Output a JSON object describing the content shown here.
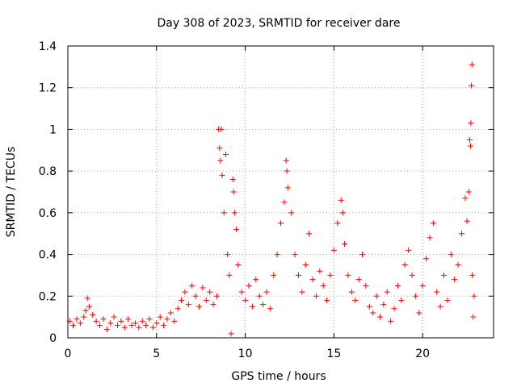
{
  "chart_data": {
    "type": "scatter",
    "title": "Day 308 of 2023, SRMTID for receiver dare",
    "xlabel": "GPS time / hours",
    "ylabel": "SRMTID / TECUs",
    "xlim": [
      0,
      24
    ],
    "ylim": [
      0,
      1.4
    ],
    "xticks": [
      0,
      5,
      10,
      15,
      20
    ],
    "xtick_labels": [
      "0",
      "5",
      "10",
      "15",
      "20"
    ],
    "yticks": [
      0,
      0.2,
      0.4,
      0.6,
      0.8,
      1.0,
      1.2,
      1.4
    ],
    "ytick_labels": [
      "0",
      "0.2",
      "0.4",
      "0.6",
      "0.8",
      "1",
      "1.2",
      "1.4"
    ],
    "grid": true,
    "marker": "+",
    "color": "#ff0000",
    "series": [
      {
        "name": "SRMTID",
        "points": [
          [
            0.1,
            0.08
          ],
          [
            0.3,
            0.06
          ],
          [
            0.5,
            0.09
          ],
          [
            0.7,
            0.07
          ],
          [
            0.9,
            0.1
          ],
          [
            1.0,
            0.13
          ],
          [
            1.1,
            0.19
          ],
          [
            1.2,
            0.15
          ],
          [
            1.4,
            0.11
          ],
          [
            1.6,
            0.08
          ],
          [
            1.8,
            0.06
          ],
          [
            2.0,
            0.09
          ],
          [
            2.2,
            0.04
          ],
          [
            2.4,
            0.07
          ],
          [
            2.6,
            0.1
          ],
          [
            2.8,
            0.06
          ],
          [
            3.0,
            0.08
          ],
          [
            3.2,
            0.05
          ],
          [
            3.4,
            0.09
          ],
          [
            3.6,
            0.06
          ],
          [
            3.8,
            0.07
          ],
          [
            4.0,
            0.05
          ],
          [
            4.2,
            0.08
          ],
          [
            4.4,
            0.06
          ],
          [
            4.6,
            0.09
          ],
          [
            4.8,
            0.05
          ],
          [
            5.0,
            0.07
          ],
          [
            5.2,
            0.1
          ],
          [
            5.4,
            0.06
          ],
          [
            5.6,
            0.09
          ],
          [
            5.8,
            0.12
          ],
          [
            6.0,
            0.08
          ],
          [
            6.2,
            0.14
          ],
          [
            6.4,
            0.18
          ],
          [
            6.6,
            0.22
          ],
          [
            6.8,
            0.16
          ],
          [
            7.0,
            0.25
          ],
          [
            7.2,
            0.2
          ],
          [
            7.4,
            0.15
          ],
          [
            7.6,
            0.24
          ],
          [
            7.8,
            0.18
          ],
          [
            8.0,
            0.22
          ],
          [
            8.2,
            0.16
          ],
          [
            8.4,
            0.2
          ],
          [
            8.5,
            1.0
          ],
          [
            8.55,
            0.91
          ],
          [
            8.6,
            0.85
          ],
          [
            8.65,
            1.0
          ],
          [
            8.7,
            0.78
          ],
          [
            8.8,
            0.6
          ],
          [
            8.9,
            0.88
          ],
          [
            9.0,
            0.4
          ],
          [
            9.1,
            0.3
          ],
          [
            9.2,
            0.02
          ],
          [
            9.3,
            0.76
          ],
          [
            9.35,
            0.7
          ],
          [
            9.4,
            0.6
          ],
          [
            9.5,
            0.52
          ],
          [
            9.6,
            0.35
          ],
          [
            9.8,
            0.22
          ],
          [
            10.0,
            0.18
          ],
          [
            10.2,
            0.25
          ],
          [
            10.4,
            0.15
          ],
          [
            10.6,
            0.28
          ],
          [
            10.8,
            0.2
          ],
          [
            11.0,
            0.16
          ],
          [
            11.2,
            0.22
          ],
          [
            11.4,
            0.14
          ],
          [
            11.6,
            0.3
          ],
          [
            11.8,
            0.4
          ],
          [
            12.0,
            0.55
          ],
          [
            12.2,
            0.65
          ],
          [
            12.3,
            0.85
          ],
          [
            12.35,
            0.8
          ],
          [
            12.4,
            0.72
          ],
          [
            12.6,
            0.6
          ],
          [
            12.8,
            0.4
          ],
          [
            13.0,
            0.3
          ],
          [
            13.2,
            0.22
          ],
          [
            13.4,
            0.35
          ],
          [
            13.6,
            0.5
          ],
          [
            13.8,
            0.28
          ],
          [
            14.0,
            0.2
          ],
          [
            14.2,
            0.32
          ],
          [
            14.4,
            0.25
          ],
          [
            14.6,
            0.18
          ],
          [
            14.8,
            0.3
          ],
          [
            15.0,
            0.42
          ],
          [
            15.2,
            0.55
          ],
          [
            15.4,
            0.66
          ],
          [
            15.5,
            0.6
          ],
          [
            15.6,
            0.45
          ],
          [
            15.8,
            0.3
          ],
          [
            16.0,
            0.22
          ],
          [
            16.2,
            0.18
          ],
          [
            16.4,
            0.28
          ],
          [
            16.6,
            0.4
          ],
          [
            16.8,
            0.25
          ],
          [
            17.0,
            0.15
          ],
          [
            17.2,
            0.12
          ],
          [
            17.4,
            0.2
          ],
          [
            17.6,
            0.1
          ],
          [
            17.8,
            0.16
          ],
          [
            18.0,
            0.22
          ],
          [
            18.2,
            0.08
          ],
          [
            18.4,
            0.14
          ],
          [
            18.6,
            0.25
          ],
          [
            18.8,
            0.18
          ],
          [
            19.0,
            0.35
          ],
          [
            19.2,
            0.42
          ],
          [
            19.4,
            0.3
          ],
          [
            19.6,
            0.2
          ],
          [
            19.8,
            0.12
          ],
          [
            20.0,
            0.25
          ],
          [
            20.2,
            0.38
          ],
          [
            20.4,
            0.48
          ],
          [
            20.6,
            0.55
          ],
          [
            20.8,
            0.22
          ],
          [
            21.0,
            0.15
          ],
          [
            21.2,
            0.3
          ],
          [
            21.4,
            0.18
          ],
          [
            21.6,
            0.4
          ],
          [
            21.8,
            0.28
          ],
          [
            22.0,
            0.35
          ],
          [
            22.2,
            0.5
          ],
          [
            22.4,
            0.67
          ],
          [
            22.5,
            0.56
          ],
          [
            22.6,
            0.7
          ],
          [
            22.65,
            0.95
          ],
          [
            22.7,
            0.92
          ],
          [
            22.72,
            1.03
          ],
          [
            22.75,
            1.21
          ],
          [
            22.78,
            1.31
          ],
          [
            22.8,
            0.3
          ],
          [
            22.85,
            0.1
          ],
          [
            22.9,
            0.2
          ]
        ]
      }
    ]
  }
}
